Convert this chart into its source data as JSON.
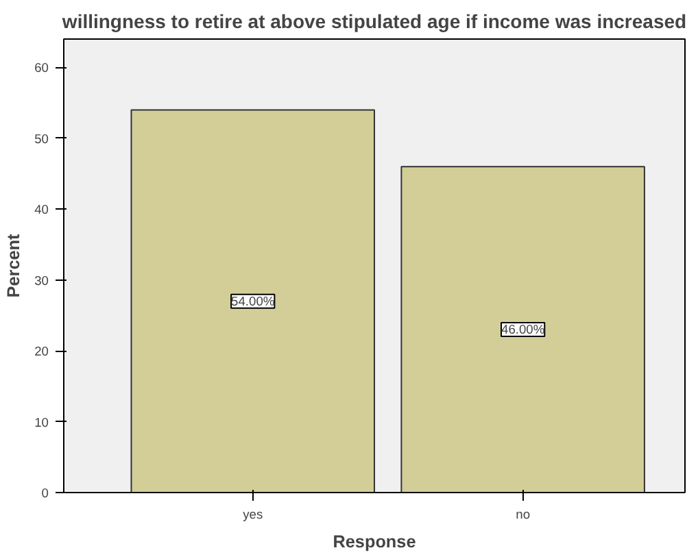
{
  "chart_data": {
    "type": "bar",
    "title": "willingness to retire at above stipulated age if income was increased",
    "xlabel": "Response",
    "ylabel": "Percent",
    "categories": [
      "yes",
      "no"
    ],
    "values": [
      54,
      46
    ],
    "value_labels": [
      "54.00%",
      "46.00%"
    ],
    "color": "#d3ce98",
    "ylim": [
      0,
      64
    ],
    "yticks": [
      0,
      10,
      20,
      30,
      40,
      50,
      60
    ],
    "grid": false
  }
}
